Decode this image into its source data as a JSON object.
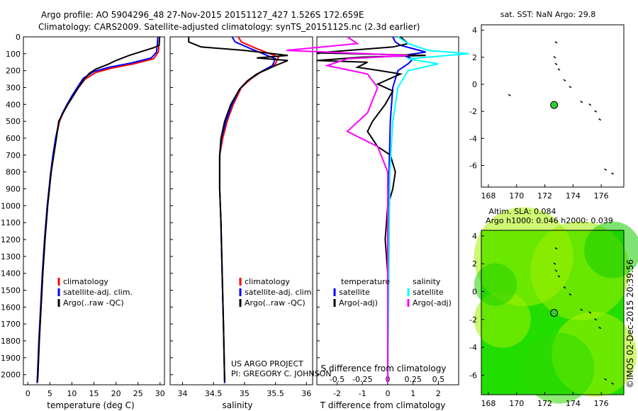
{
  "header": {
    "line1": "Argo profile: AO 5904296_48 27-Nov-2015 20151127_427 1.526S 172.659E",
    "line2": "Climatology: CARS2009. Satellite-adjusted climatology: synTS_20151125.nc (2.3d earlier)"
  },
  "credit": "©IMOS 02-Dec-2015 20:39:56",
  "project": {
    "line1": "US ARGO PROJECT",
    "line2": "PI: GREGORY C. JOHNSON"
  },
  "colors": {
    "climatology": "#ff0000",
    "satellite": "#0000ff",
    "argo": "#000000",
    "sal_satellite": "#00ffff",
    "sal_argo": "#ff00ff",
    "map_fill": "#22dd00"
  },
  "chart_data": [
    {
      "id": "temperature",
      "type": "line",
      "xlabel": "temperature (deg C)",
      "ylabel": "pressure (dbar)",
      "xlim": [
        -1,
        31
      ],
      "ylim": [
        2060,
        0
      ],
      "xticks": [
        0,
        5,
        10,
        15,
        20,
        25,
        30
      ],
      "yticks": [
        0,
        100,
        200,
        300,
        400,
        500,
        600,
        700,
        800,
        900,
        1000,
        1100,
        1200,
        1300,
        1400,
        1500,
        1600,
        1700,
        1800,
        1900,
        2000
      ],
      "legend": [
        "climatology",
        "satellite-adj. clim.",
        "Argo(..raw -QC)"
      ],
      "series": [
        {
          "name": "climatology",
          "color": "#ff0000",
          "points": [
            [
              29.9,
              0
            ],
            [
              29.8,
              40
            ],
            [
              29.6,
              90
            ],
            [
              28.5,
              130
            ],
            [
              24,
              160
            ],
            [
              19,
              185
            ],
            [
              15.5,
              210
            ],
            [
              13,
              250
            ],
            [
              11.5,
              300
            ],
            [
              10.2,
              350
            ],
            [
              9,
              400
            ],
            [
              8,
              450
            ],
            [
              7.2,
              500
            ],
            [
              6.4,
              600
            ],
            [
              5.8,
              700
            ],
            [
              5.3,
              800
            ],
            [
              4.9,
              900
            ],
            [
              4.5,
              1000
            ],
            [
              3.9,
              1200
            ],
            [
              3.4,
              1400
            ],
            [
              3.0,
              1600
            ],
            [
              2.6,
              1800
            ],
            [
              2.3,
              2000
            ],
            [
              2.2,
              2050
            ]
          ]
        },
        {
          "name": "satellite",
          "color": "#0000ff",
          "points": [
            [
              29.5,
              0
            ],
            [
              29.4,
              40
            ],
            [
              29.2,
              90
            ],
            [
              28,
              125
            ],
            [
              23.5,
              155
            ],
            [
              18.5,
              180
            ],
            [
              15,
              205
            ],
            [
              12.6,
              245
            ],
            [
              11.2,
              300
            ],
            [
              10,
              350
            ],
            [
              8.9,
              400
            ],
            [
              7.9,
              450
            ],
            [
              7.1,
              500
            ],
            [
              6.3,
              600
            ],
            [
              5.7,
              700
            ],
            [
              5.2,
              800
            ],
            [
              4.8,
              900
            ],
            [
              4.4,
              1000
            ],
            [
              3.8,
              1200
            ],
            [
              3.3,
              1400
            ],
            [
              2.9,
              1600
            ],
            [
              2.5,
              1800
            ],
            [
              2.2,
              2000
            ],
            [
              2.1,
              2050
            ]
          ]
        },
        {
          "name": "argo",
          "color": "#000000",
          "points": [
            [
              29.9,
              0
            ],
            [
              29.8,
              50
            ],
            [
              28.5,
              65
            ],
            [
              26,
              85
            ],
            [
              23,
              110
            ],
            [
              20,
              140
            ],
            [
              18,
              165
            ],
            [
              15.5,
              190
            ],
            [
              14,
              215
            ],
            [
              12.8,
              250
            ],
            [
              11.5,
              300
            ],
            [
              10.3,
              350
            ],
            [
              9.1,
              400
            ],
            [
              8,
              450
            ],
            [
              7,
              500
            ],
            [
              6.5,
              600
            ],
            [
              5.9,
              700
            ],
            [
              5.3,
              800
            ],
            [
              4.9,
              900
            ],
            [
              4.5,
              1000
            ],
            [
              3.9,
              1200
            ],
            [
              3.4,
              1400
            ],
            [
              3.0,
              1600
            ],
            [
              2.6,
              1800
            ],
            [
              2.3,
              2000
            ],
            [
              2.2,
              2040
            ]
          ]
        }
      ]
    },
    {
      "id": "salinity",
      "type": "line",
      "xlabel": "salinity",
      "xlim": [
        33.8,
        36.1
      ],
      "ylim": [
        2060,
        0
      ],
      "xticks": [
        34,
        34.5,
        35,
        35.5,
        36
      ],
      "legend": [
        "climatology",
        "satellite-adj. clim.",
        "Argo(..raw -QC)"
      ],
      "series": [
        {
          "name": "climatology",
          "color": "#ff0000",
          "points": [
            [
              34.9,
              0
            ],
            [
              34.95,
              30
            ],
            [
              35.2,
              70
            ],
            [
              35.55,
              120
            ],
            [
              35.5,
              160
            ],
            [
              35.3,
              200
            ],
            [
              35.1,
              250
            ],
            [
              34.95,
              300
            ],
            [
              34.82,
              400
            ],
            [
              34.72,
              500
            ],
            [
              34.65,
              600
            ],
            [
              34.6,
              700
            ],
            [
              34.6,
              900
            ],
            [
              34.62,
              1100
            ],
            [
              34.64,
              1400
            ],
            [
              34.66,
              1700
            ],
            [
              34.68,
              2050
            ]
          ]
        },
        {
          "name": "satellite",
          "color": "#0000ff",
          "points": [
            [
              34.8,
              0
            ],
            [
              34.85,
              30
            ],
            [
              35.1,
              70
            ],
            [
              35.5,
              130
            ],
            [
              35.45,
              170
            ],
            [
              35.25,
              210
            ],
            [
              35.05,
              260
            ],
            [
              34.92,
              310
            ],
            [
              34.8,
              400
            ],
            [
              34.7,
              500
            ],
            [
              34.63,
              600
            ],
            [
              34.6,
              700
            ],
            [
              34.6,
              900
            ],
            [
              34.62,
              1100
            ],
            [
              34.64,
              1400
            ],
            [
              34.66,
              1700
            ],
            [
              34.68,
              2050
            ]
          ]
        },
        {
          "name": "argo",
          "color": "#000000",
          "points": [
            [
              34.1,
              0
            ],
            [
              34.1,
              30
            ],
            [
              34.3,
              60
            ],
            [
              35.0,
              80
            ],
            [
              35.7,
              110
            ],
            [
              35.2,
              125
            ],
            [
              35.7,
              140
            ],
            [
              35.5,
              170
            ],
            [
              35.2,
              220
            ],
            [
              35.05,
              260
            ],
            [
              34.92,
              310
            ],
            [
              34.78,
              400
            ],
            [
              34.68,
              500
            ],
            [
              34.62,
              600
            ],
            [
              34.6,
              700
            ],
            [
              34.6,
              900
            ],
            [
              34.62,
              1100
            ],
            [
              34.64,
              1400
            ],
            [
              34.66,
              1700
            ],
            [
              34.68,
              2040
            ]
          ]
        }
      ]
    },
    {
      "id": "difference",
      "type": "line",
      "xlabel": "T difference from climatology",
      "top_label": "S difference from climatology",
      "xlim": [
        -2.8,
        2.8
      ],
      "ylim": [
        2060,
        0
      ],
      "xticks_bottom": [
        -2,
        -1,
        0,
        1,
        2
      ],
      "xticks_top": [
        -0.5,
        -0.25,
        0,
        0.25,
        0.5
      ],
      "legend_titles": [
        "temperature",
        "salinity"
      ],
      "legend": [
        "satellite",
        "Argo(-adj)",
        "satellite",
        "Argo(-adj)"
      ],
      "series": [
        {
          "name": "T satellite",
          "color": "#0000ff",
          "points": [
            [
              0.2,
              0
            ],
            [
              0.3,
              30
            ],
            [
              0.5,
              50
            ],
            [
              1.5,
              90
            ],
            [
              0.6,
              110
            ],
            [
              1.0,
              130
            ],
            [
              0.8,
              160
            ],
            [
              0.4,
              200
            ],
            [
              0.2,
              300
            ],
            [
              0.1,
              500
            ],
            [
              0.05,
              800
            ],
            [
              0.02,
              1200
            ],
            [
              0,
              2050
            ]
          ]
        },
        {
          "name": "T argo",
          "color": "#000000",
          "points": [
            [
              0.5,
              0
            ],
            [
              0.8,
              40
            ],
            [
              0.2,
              60
            ],
            [
              -2.8,
              95
            ],
            [
              1.5,
              110
            ],
            [
              -1.0,
              120
            ],
            [
              -2.8,
              140
            ],
            [
              -0.8,
              150
            ],
            [
              -1.2,
              180
            ],
            [
              -0.3,
              200
            ],
            [
              0.5,
              220
            ],
            [
              -0.4,
              280
            ],
            [
              0.2,
              320
            ],
            [
              -0.1,
              400
            ],
            [
              -0.6,
              500
            ],
            [
              -0.8,
              560
            ],
            [
              -0.4,
              650
            ],
            [
              0.1,
              700
            ],
            [
              0.3,
              800
            ],
            [
              0.2,
              900
            ],
            [
              0,
              1000
            ],
            [
              -0.1,
              1200
            ],
            [
              0,
              1400
            ],
            [
              0,
              1600
            ],
            [
              0,
              2040
            ]
          ]
        },
        {
          "name": "S satellite",
          "color": "#00ffff",
          "points": [
            [
              0.1,
              0
            ],
            [
              0.2,
              40
            ],
            [
              0.4,
              80
            ],
            [
              0.8,
              100
            ],
            [
              0.2,
              130
            ],
            [
              0.5,
              160
            ],
            [
              0.2,
              200
            ],
            [
              0.1,
              300
            ],
            [
              0.05,
              500
            ],
            [
              0.02,
              800
            ],
            [
              0,
              2050
            ]
          ]
        },
        {
          "name": "S argo",
          "color": "#ff00ff",
          "points": [
            [
              -0.4,
              0
            ],
            [
              -0.3,
              40
            ],
            [
              -1.0,
              80
            ],
            [
              0.2,
              110
            ],
            [
              -0.4,
              130
            ],
            [
              -0.6,
              170
            ],
            [
              -0.2,
              220
            ],
            [
              -0.1,
              300
            ],
            [
              -0.2,
              450
            ],
            [
              -0.4,
              560
            ],
            [
              -0.1,
              650
            ],
            [
              0,
              800
            ],
            [
              0,
              2050
            ]
          ]
        }
      ]
    },
    {
      "id": "sst-map",
      "type": "scatter",
      "title": "sat. SST: NaN Argo: 29.8",
      "xlim": [
        167.5,
        177.6
      ],
      "ylim": [
        -7.6,
        4.4
      ],
      "xticks": [
        168,
        170,
        172,
        174,
        176
      ],
      "yticks": [
        -6,
        -4,
        -2,
        0,
        2,
        4
      ],
      "float_position": [
        172.659,
        -1.526
      ],
      "track": [
        [
          172.8,
          3.1
        ],
        [
          172.7,
          2.0
        ],
        [
          172.8,
          1.5
        ],
        [
          173.0,
          1.1
        ],
        [
          173.4,
          0.3
        ],
        [
          173.8,
          -0.2
        ],
        [
          174.6,
          -1.3
        ],
        [
          175.2,
          -1.5
        ],
        [
          175.6,
          -2.0
        ],
        [
          175.9,
          -2.6
        ],
        [
          176.3,
          -6.3
        ],
        [
          176.8,
          -6.6
        ],
        [
          169.5,
          -0.8
        ]
      ]
    },
    {
      "id": "sla-map",
      "type": "heatmap",
      "title_line1": "Altim. SLA: 0.084",
      "title_line2": "Argo h1000: 0.046 h2000: 0.039",
      "xlim": [
        167.5,
        177.6
      ],
      "ylim": [
        -7.4,
        4.4
      ],
      "xticks": [
        168,
        170,
        172,
        174,
        176
      ],
      "yticks": [
        -6,
        -4,
        -2,
        0,
        2,
        4
      ],
      "float_position": [
        172.659,
        -1.526
      ],
      "track": [
        [
          172.8,
          3.1
        ],
        [
          172.7,
          2.0
        ],
        [
          172.8,
          1.5
        ],
        [
          173.0,
          1.1
        ],
        [
          173.4,
          0.3
        ],
        [
          173.8,
          -0.2
        ],
        [
          174.6,
          -1.3
        ],
        [
          175.2,
          -1.5
        ],
        [
          175.6,
          -2.0
        ],
        [
          175.9,
          -2.6
        ],
        [
          176.3,
          -6.3
        ],
        [
          176.8,
          -6.6
        ]
      ]
    }
  ]
}
